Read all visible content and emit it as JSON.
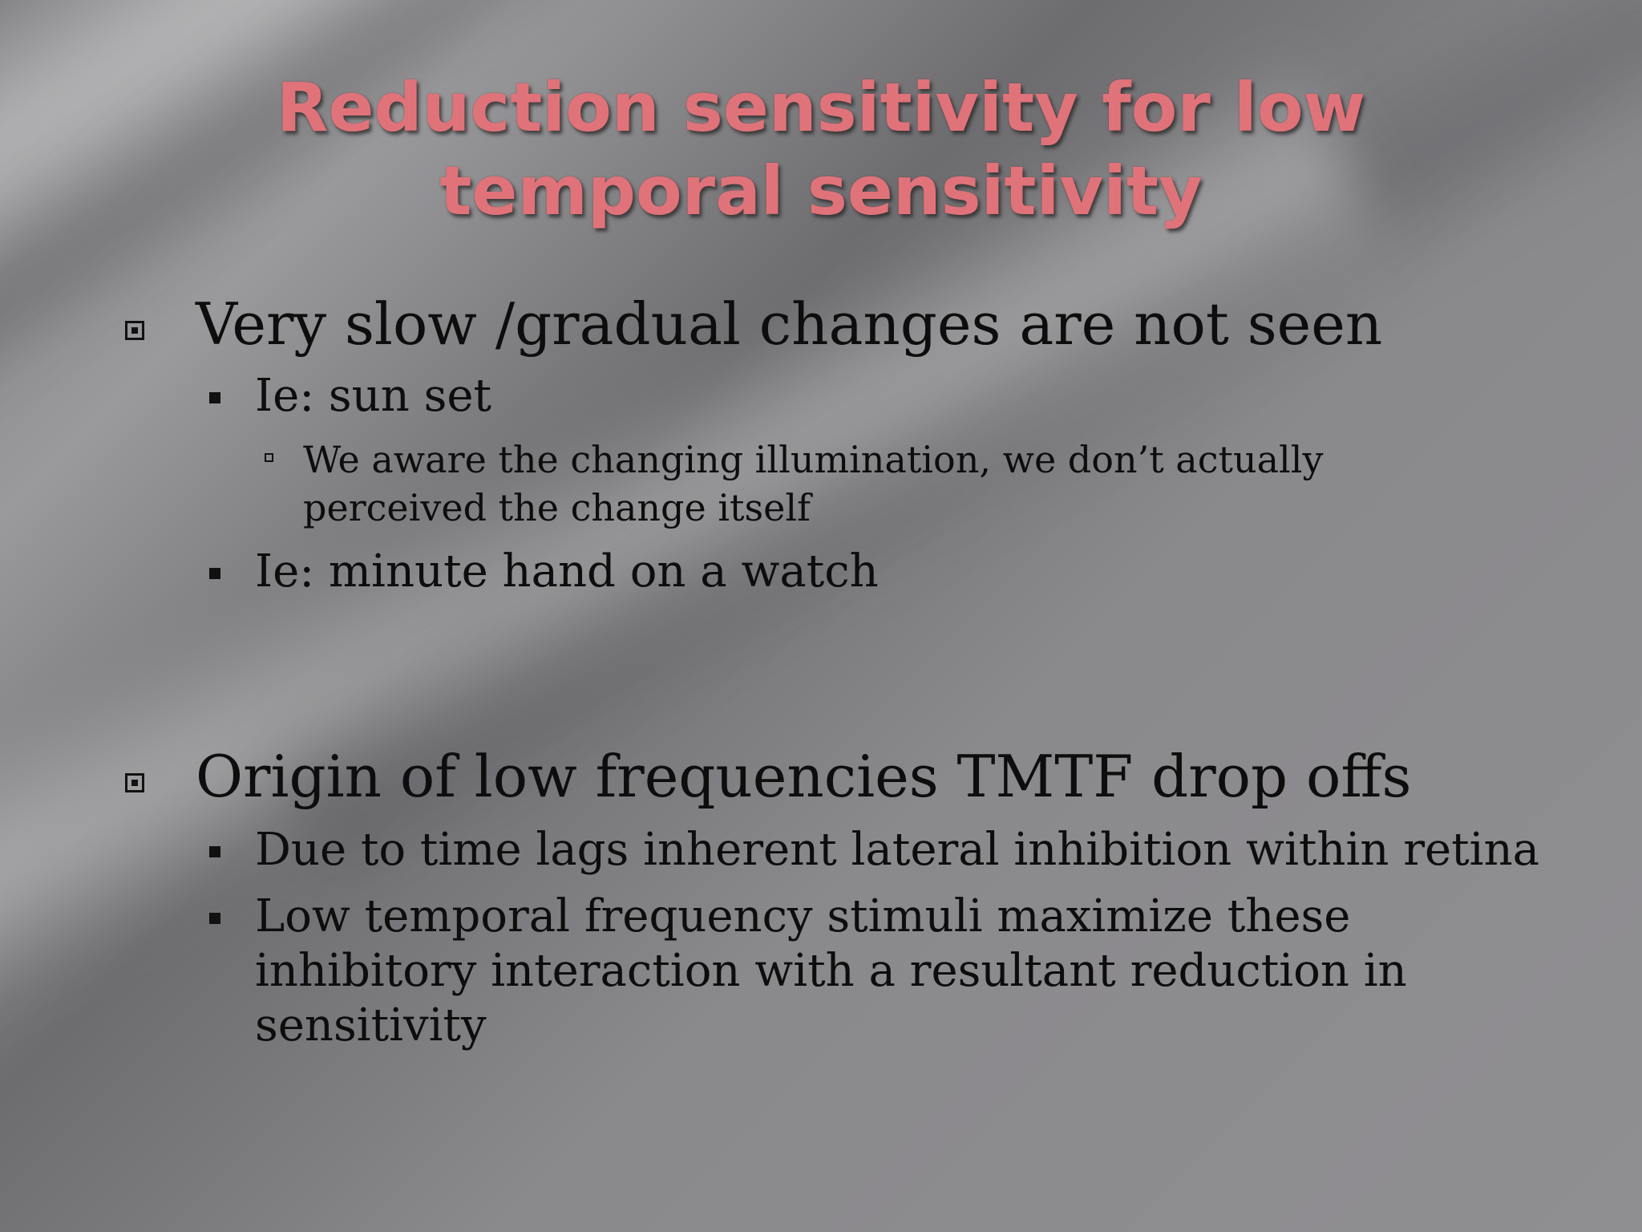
{
  "slide": {
    "title_lines": [
      "Reduction sensitivity for low",
      "temporal sensitivity"
    ],
    "sections": [
      {
        "text": "Very slow /gradual changes are not seen",
        "sub": [
          {
            "text": "Ie: sun set",
            "sub": [
              {
                "text": "We aware the changing illumination, we don’t actually perceived the change itself"
              }
            ]
          },
          {
            "text": "Ie: minute hand on a watch"
          }
        ]
      },
      {
        "text": "Origin of low frequencies TMTF drop offs",
        "sub": [
          {
            "text": "Due to time lags inherent lateral inhibition within retina"
          },
          {
            "text": "Low temporal frequency stimuli maximize these inhibitory interaction with a resultant reduction in sensitivity"
          }
        ]
      }
    ],
    "colors": {
      "title": "#e0737a",
      "body_text": "#0d0d0d",
      "background": "#7c7b7e"
    },
    "bullet_icons": {
      "level1": "boxed-square-bullet",
      "level2": "filled-square-bullet",
      "level3": "hollow-square-bullet"
    }
  }
}
